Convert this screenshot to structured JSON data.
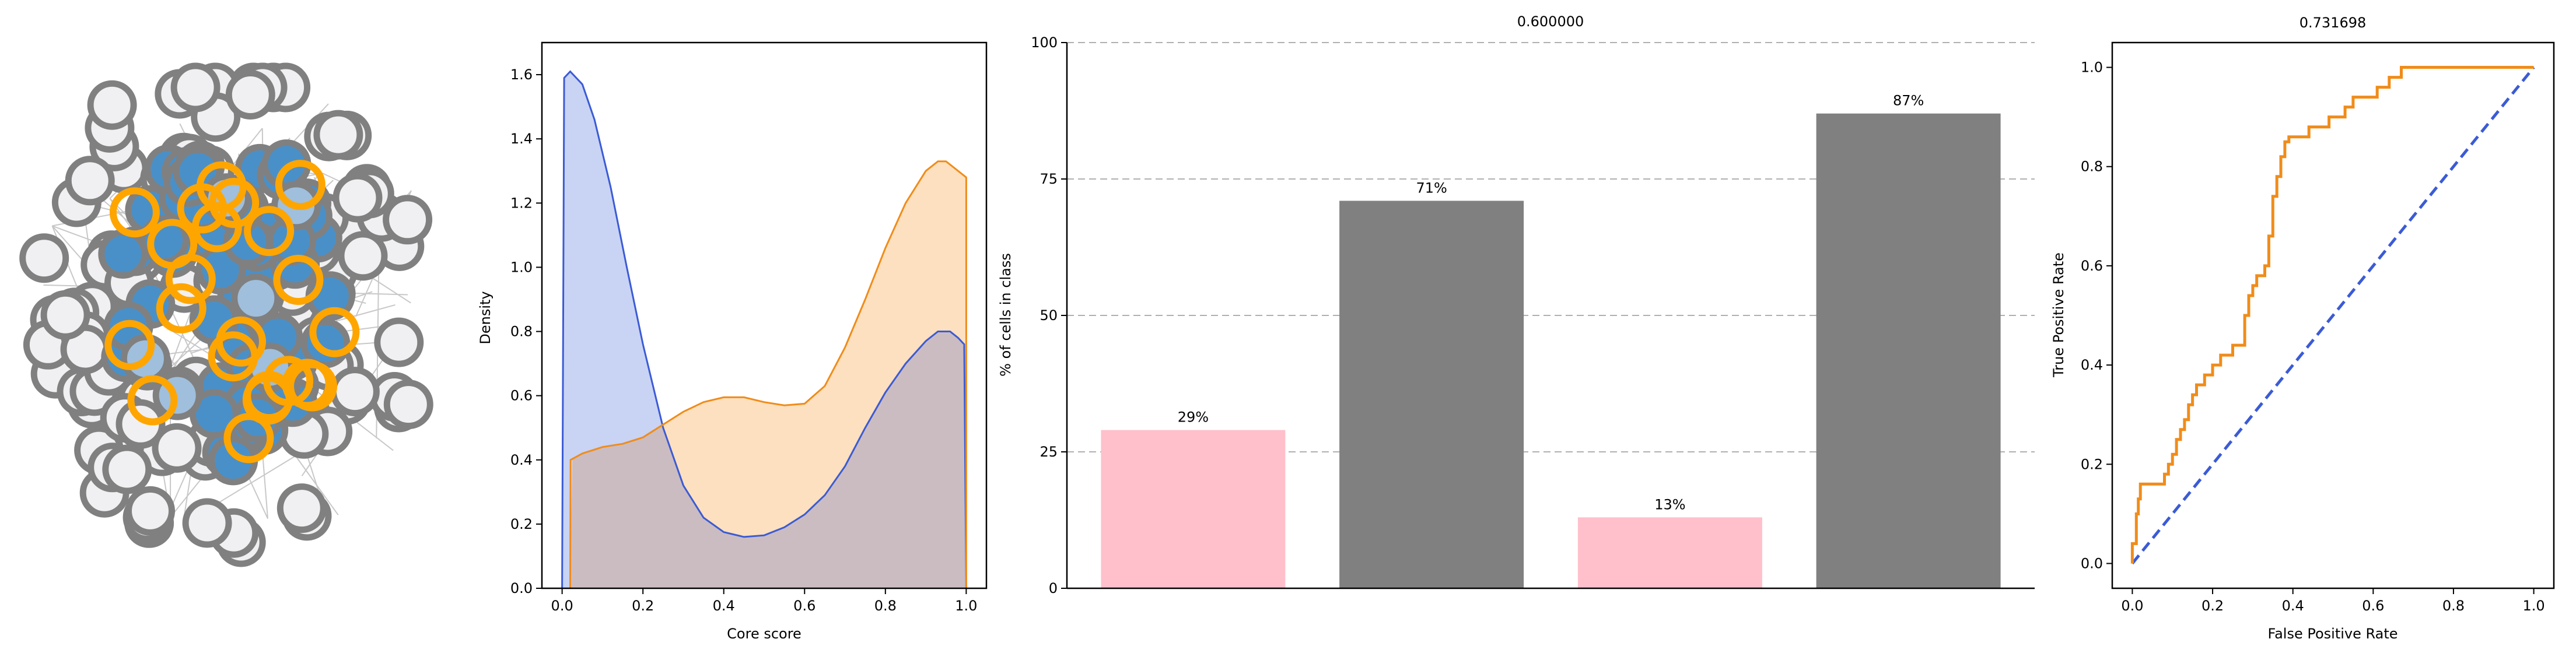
{
  "colors": {
    "blue_line": "#3b5bd5",
    "blue_fill": "#c9d3f4",
    "orange_line": "#f08c1a",
    "orange_fill": "#fde0bf",
    "overlap_fill": "#cbbcc2",
    "pink_bar": "#ffc0cb",
    "gray_bar": "#808080",
    "grid": "#b0b0b0",
    "node_fill": "#f0f0f2",
    "node_edge": "#808080",
    "node_core": "#4a90c8",
    "node_light": "#9fbfdc",
    "node_ring": "#ffa500"
  },
  "chart_data": [
    {
      "id": "network",
      "type": "network",
      "node_groups": [
        {
          "group": "periphery",
          "fill": "node_fill",
          "edge": "node_edge",
          "count": 112
        },
        {
          "group": "core",
          "fill": "node_core",
          "edge": "node_edge",
          "count": 54
        },
        {
          "group": "core-light",
          "fill": "node_light",
          "edge": "node_edge",
          "count": 6
        },
        {
          "group": "highlighted",
          "edge": "node_ring",
          "count": 22
        }
      ]
    },
    {
      "id": "density",
      "type": "area",
      "xlabel": "Core score",
      "ylabel": "Density",
      "xlim": [
        -0.05,
        1.05
      ],
      "ylim": [
        0,
        1.7
      ],
      "xticks": [
        "0.0",
        "0.2",
        "0.4",
        "0.6",
        "0.8",
        "1.0"
      ],
      "yticks": [
        "0.0",
        "0.2",
        "0.4",
        "0.6",
        "0.8",
        "1.0",
        "1.2",
        "1.4",
        "1.6"
      ],
      "series": [
        {
          "color": "blue",
          "x": [
            0.0,
            0.005,
            0.02,
            0.05,
            0.08,
            0.12,
            0.16,
            0.2,
            0.25,
            0.3,
            0.35,
            0.4,
            0.45,
            0.5,
            0.55,
            0.6,
            0.65,
            0.7,
            0.75,
            0.8,
            0.85,
            0.9,
            0.93,
            0.96,
            0.98,
            0.995,
            1.0
          ],
          "y": [
            0.0,
            1.59,
            1.61,
            1.57,
            1.46,
            1.25,
            1.0,
            0.76,
            0.5,
            0.32,
            0.22,
            0.175,
            0.16,
            0.165,
            0.19,
            0.23,
            0.29,
            0.38,
            0.5,
            0.61,
            0.7,
            0.77,
            0.8,
            0.8,
            0.78,
            0.76,
            0.0
          ]
        },
        {
          "color": "orange",
          "x": [
            0.02,
            0.021,
            0.05,
            0.1,
            0.15,
            0.2,
            0.25,
            0.3,
            0.35,
            0.4,
            0.45,
            0.5,
            0.55,
            0.6,
            0.65,
            0.7,
            0.75,
            0.8,
            0.85,
            0.9,
            0.93,
            0.95,
            0.97,
            0.99,
            1.0,
            1.0
          ],
          "y": [
            0.0,
            0.4,
            0.42,
            0.44,
            0.45,
            0.47,
            0.51,
            0.55,
            0.58,
            0.595,
            0.595,
            0.58,
            0.57,
            0.575,
            0.63,
            0.75,
            0.9,
            1.06,
            1.2,
            1.3,
            1.33,
            1.33,
            1.31,
            1.29,
            1.28,
            0.0
          ]
        }
      ]
    },
    {
      "id": "bars",
      "type": "bar",
      "title": "0.600000",
      "ylabel": "% of cells in class",
      "ylim": [
        0,
        100
      ],
      "yticks": [
        "0",
        "25",
        "50",
        "75",
        "100"
      ],
      "values": [
        29,
        71,
        13,
        87
      ],
      "labels": [
        "29%",
        "71%",
        "13%",
        "87%"
      ],
      "bar_colors": [
        "pink",
        "gray",
        "pink",
        "gray"
      ],
      "grid": "horizontal dashed"
    },
    {
      "id": "roc",
      "type": "line",
      "title": "0.731698",
      "xlabel": "False Positive Rate",
      "ylabel": "True Positive Rate",
      "xlim": [
        -0.05,
        1.05
      ],
      "ylim": [
        -0.05,
        1.05
      ],
      "xticks": [
        "0.0",
        "0.2",
        "0.4",
        "0.6",
        "0.8",
        "1.0"
      ],
      "yticks": [
        "0.0",
        "0.2",
        "0.4",
        "0.6",
        "0.8",
        "1.0"
      ],
      "series": [
        {
          "color": "orange",
          "x": [
            0.0,
            0.0,
            0.01,
            0.01,
            0.015,
            0.015,
            0.02,
            0.02,
            0.08,
            0.08,
            0.09,
            0.09,
            0.1,
            0.1,
            0.11,
            0.11,
            0.12,
            0.12,
            0.13,
            0.13,
            0.14,
            0.14,
            0.15,
            0.15,
            0.16,
            0.16,
            0.18,
            0.18,
            0.2,
            0.2,
            0.22,
            0.22,
            0.25,
            0.25,
            0.28,
            0.28,
            0.29,
            0.29,
            0.3,
            0.3,
            0.31,
            0.31,
            0.33,
            0.33,
            0.34,
            0.34,
            0.35,
            0.35,
            0.36,
            0.36,
            0.37,
            0.37,
            0.38,
            0.38,
            0.39,
            0.39,
            0.4,
            0.4,
            0.41,
            0.41,
            0.44,
            0.44,
            0.49,
            0.49,
            0.53,
            0.53,
            0.55,
            0.55,
            0.61,
            0.61,
            0.64,
            0.64,
            0.67,
            0.67,
            0.68,
            0.68,
            1.0
          ],
          "y": [
            0.0,
            0.04,
            0.04,
            0.1,
            0.1,
            0.13,
            0.13,
            0.16,
            0.16,
            0.18,
            0.18,
            0.2,
            0.2,
            0.22,
            0.22,
            0.25,
            0.25,
            0.27,
            0.27,
            0.29,
            0.29,
            0.32,
            0.32,
            0.34,
            0.34,
            0.36,
            0.36,
            0.38,
            0.38,
            0.4,
            0.4,
            0.42,
            0.42,
            0.44,
            0.44,
            0.5,
            0.5,
            0.54,
            0.54,
            0.56,
            0.56,
            0.58,
            0.58,
            0.6,
            0.6,
            0.66,
            0.66,
            0.74,
            0.74,
            0.78,
            0.78,
            0.82,
            0.82,
            0.85,
            0.85,
            0.86,
            0.86,
            0.86,
            0.86,
            0.86,
            0.86,
            0.88,
            0.88,
            0.9,
            0.9,
            0.92,
            0.92,
            0.94,
            0.94,
            0.96,
            0.96,
            0.98,
            0.98,
            1.0,
            1.0,
            1.0,
            1.0
          ]
        },
        {
          "color": "blue",
          "style": "dashed",
          "x": [
            0,
            1
          ],
          "y": [
            0,
            1
          ]
        }
      ]
    }
  ]
}
